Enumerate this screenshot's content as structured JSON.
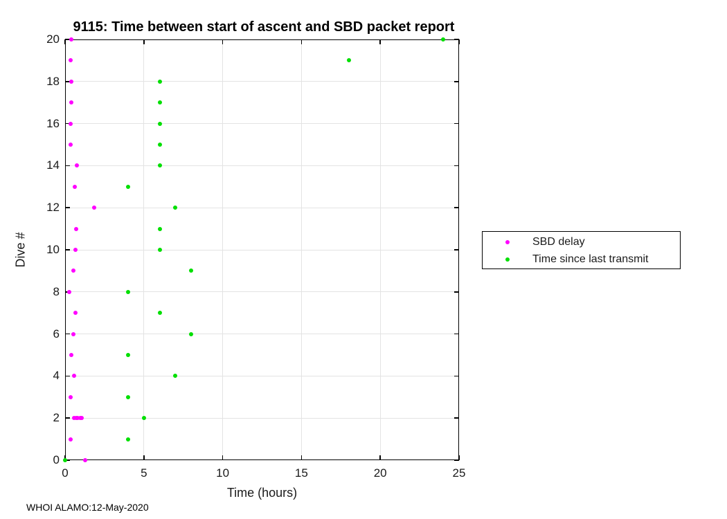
{
  "title": "9115: Time between start of ascent and SBD packet report",
  "footer": "WHOI ALAMO:12-May-2020",
  "colors": {
    "sbd_delay": "#FF00FF",
    "time_since_last_transmit": "#00DF00",
    "grid": "#e3e3e3",
    "axis": "#000000"
  },
  "legend": {
    "items": [
      {
        "label": "SBD delay",
        "color": "#FF00FF"
      },
      {
        "label": "Time since last transmit",
        "color": "#00DF00"
      }
    ]
  },
  "chart_data": {
    "type": "scatter",
    "title": "9115: Time between start of ascent and SBD packet report",
    "xlabel": "Time (hours)",
    "ylabel": "Dive #",
    "xlim": [
      0,
      25
    ],
    "ylim": [
      0,
      20
    ],
    "xticks": [
      0,
      5,
      10,
      15,
      20,
      25
    ],
    "yticks": [
      0,
      2,
      4,
      6,
      8,
      10,
      12,
      14,
      16,
      18,
      20
    ],
    "grid": true,
    "legend_position": "outside-right",
    "series": [
      {
        "name": "SBD delay",
        "color": "#FF00FF",
        "marker": "dot",
        "points": [
          [
            1.27,
            0
          ],
          [
            0.35,
            1
          ],
          [
            0.55,
            2
          ],
          [
            0.7,
            2
          ],
          [
            0.8,
            2
          ],
          [
            0.95,
            2
          ],
          [
            1.05,
            2
          ],
          [
            0.35,
            3
          ],
          [
            0.58,
            4
          ],
          [
            0.39,
            5
          ],
          [
            0.54,
            6
          ],
          [
            0.65,
            7
          ],
          [
            0.27,
            8
          ],
          [
            0.51,
            9
          ],
          [
            0.65,
            10
          ],
          [
            0.71,
            11
          ],
          [
            1.83,
            12
          ],
          [
            0.61,
            13
          ],
          [
            0.74,
            14
          ],
          [
            0.36,
            15
          ],
          [
            0.36,
            16
          ],
          [
            0.4,
            17
          ],
          [
            0.4,
            18
          ],
          [
            0.35,
            19
          ],
          [
            0.4,
            20
          ]
        ]
      },
      {
        "name": "Time since last transmit",
        "color": "#00DF00",
        "marker": "dot",
        "points": [
          [
            0,
            0
          ],
          [
            4,
            1
          ],
          [
            5,
            2
          ],
          [
            4,
            3
          ],
          [
            7,
            4
          ],
          [
            4,
            5
          ],
          [
            8,
            6
          ],
          [
            6,
            7
          ],
          [
            4,
            8
          ],
          [
            8,
            9
          ],
          [
            6,
            10
          ],
          [
            6,
            11
          ],
          [
            7,
            12
          ],
          [
            4,
            13
          ],
          [
            6,
            14
          ],
          [
            6,
            15
          ],
          [
            6,
            16
          ],
          [
            6,
            17
          ],
          [
            6,
            18
          ],
          [
            18,
            19
          ],
          [
            24,
            20
          ]
        ]
      }
    ]
  }
}
